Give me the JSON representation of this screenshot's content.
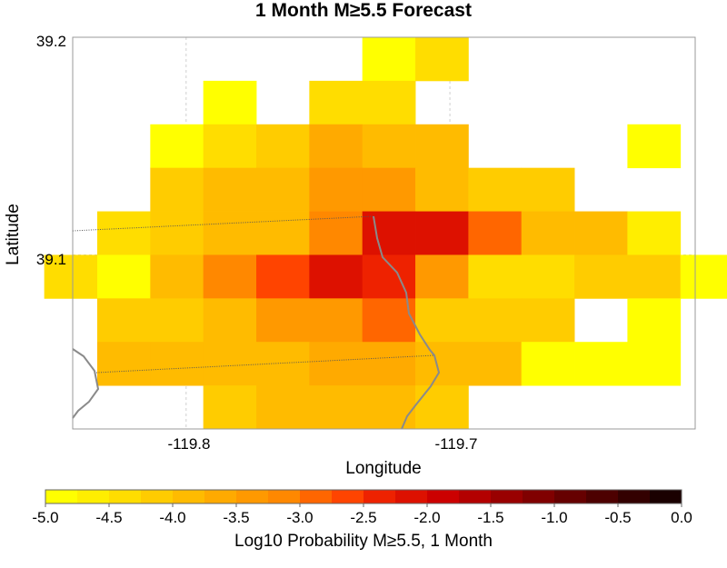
{
  "chart_data": {
    "type": "heatmap",
    "title": "1 Month M≥5.5 Forecast",
    "xlabel": "Longitude",
    "ylabel": "Latitude",
    "xlim": [
      -119.843,
      -119.607
    ],
    "ylim": [
      39.02,
      39.2
    ],
    "cell_size": [
      0.0201,
      0.02
    ],
    "x_ticks": [
      {
        "value": -119.8,
        "label": "-119.8"
      },
      {
        "value": -119.7,
        "label": "-119.7"
      }
    ],
    "y_ticks": [
      {
        "value": 39.2,
        "label": "39.2"
      },
      {
        "value": 39.1,
        "label": "39.1"
      }
    ],
    "grid": true,
    "rows": [
      {
        "lat": 39.19,
        "lon_start": -119.7332,
        "values": [
          -4.9,
          -4.3
        ]
      },
      {
        "lat": 39.17,
        "lon_start": -119.7935,
        "values": [
          -4.8,
          null,
          -4.3,
          -4.3
        ]
      },
      {
        "lat": 39.15,
        "lon_start": -119.8136,
        "values": [
          -4.9,
          -4.3,
          -4.1,
          -3.6,
          -4.0,
          -4.0,
          null,
          null,
          null,
          -4.8
        ]
      },
      {
        "lat": 39.13,
        "lon_start": -119.8136,
        "values": [
          -4.2,
          -4.0,
          -3.9,
          -3.3,
          -3.3,
          -4.0,
          -4.2,
          -4.2
        ]
      },
      {
        "lat": 39.11,
        "lon_start": -119.8337,
        "values": [
          -4.3,
          -4.2,
          -4.0,
          -3.9,
          -3.2,
          -2.2,
          -2.2,
          -2.8,
          -3.8,
          -3.8,
          -4.7
        ]
      },
      {
        "lat": 39.09,
        "lon_start": -119.8538,
        "values": [
          -4.4,
          -4.9,
          -3.9,
          -3.2,
          -2.7,
          -2.1,
          -2.5,
          -3.3,
          -4.5,
          -4.3,
          -4.1,
          -4.1,
          -4.8
        ]
      },
      {
        "lat": 39.07,
        "lon_start": -119.8337,
        "values": [
          -4.2,
          -4.1,
          -3.9,
          -3.4,
          -3.4,
          -3.0,
          -4.2,
          -4.2,
          -4.2,
          null,
          -4.9
        ]
      },
      {
        "lat": 39.05,
        "lon_start": -119.8337,
        "values": [
          -3.9,
          -3.9,
          -3.8,
          -3.8,
          -3.7,
          -3.7,
          -3.8,
          -3.9,
          -4.8,
          -4.8,
          -4.8
        ]
      },
      {
        "lat": 39.03,
        "lon_start": -119.7935,
        "values": [
          -4.2,
          -3.9,
          -3.9,
          -3.9,
          -4.1
        ]
      }
    ],
    "colorbar": {
      "label": "Log10 Probability M≥5.5, 1 Month",
      "range": [
        -5.0,
        0.0
      ],
      "ticks": [
        "-5.0",
        "-4.5",
        "-4.0",
        "-3.5",
        "-3.0",
        "-2.5",
        "-2.0",
        "-1.5",
        "-1.0",
        "-0.5",
        "0.0"
      ],
      "colors": [
        "#ffff00",
        "#ffee00",
        "#ffdd00",
        "#ffcc00",
        "#ffbb00",
        "#ffaa00",
        "#ff9900",
        "#ff8800",
        "#ff6600",
        "#ff4400",
        "#ee2200",
        "#dd1100",
        "#cc0000",
        "#b30000",
        "#990000",
        "#800000",
        "#660000",
        "#4d0000",
        "#330000",
        "#1a0000"
      ]
    }
  }
}
